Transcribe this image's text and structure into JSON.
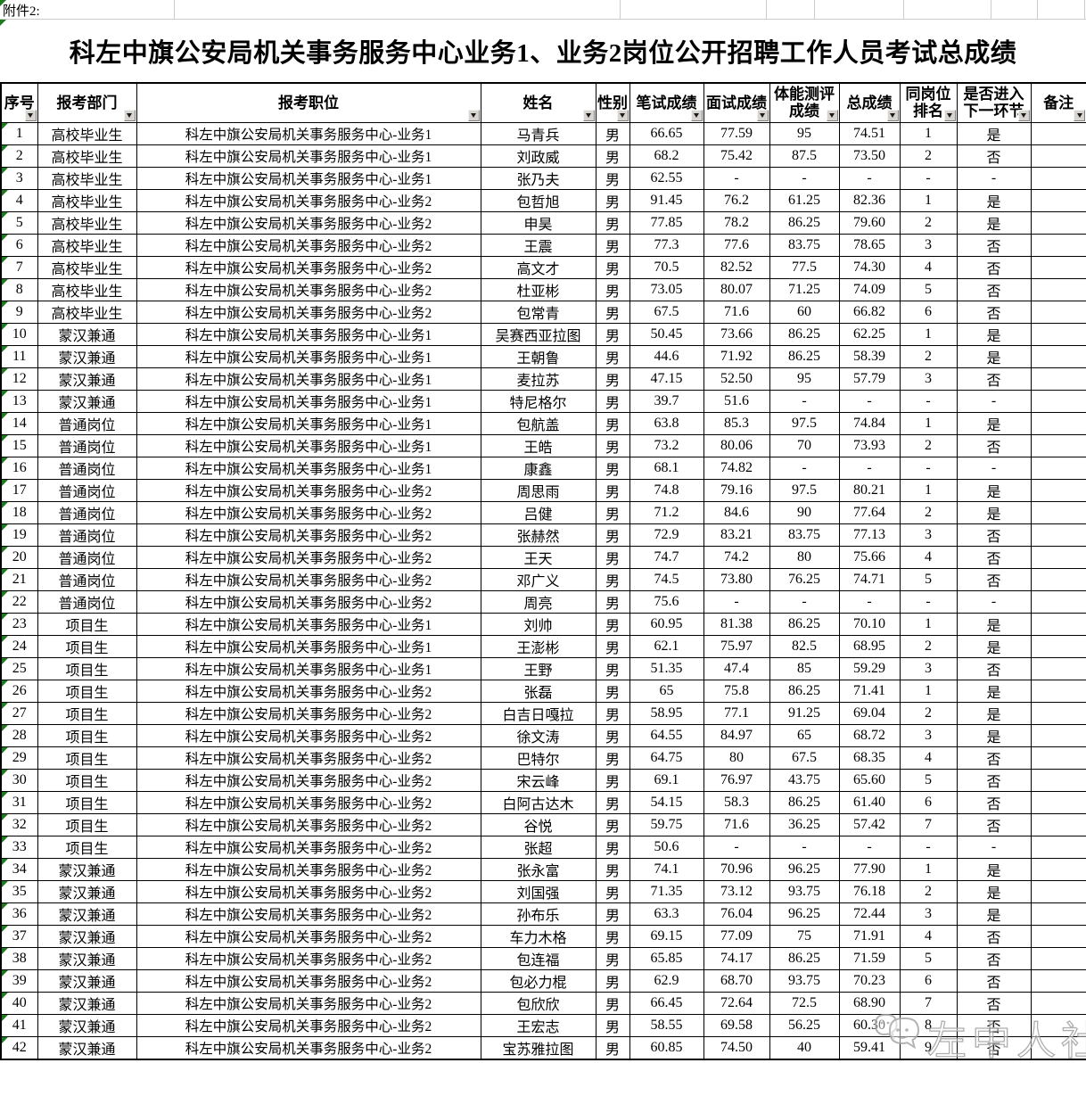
{
  "attachment_label": "附件2:",
  "title": "科左中旗公安局机关事务服务中心业务1、业务2岗位公开招聘工作人员考试总成绩",
  "watermark_text": "左中人社",
  "colors": {
    "grid_black": "#000000",
    "gridline_gray": "#cccccc",
    "flag_green": "#1e7a1e",
    "filter_btn_face": "#d8d5d0",
    "watermark_gray": "#a8a8a8"
  },
  "table": {
    "columns": [
      {
        "key": "xh",
        "label": "序号"
      },
      {
        "key": "bkbm",
        "label": "报考部门"
      },
      {
        "key": "bkzw",
        "label": "报考职位"
      },
      {
        "key": "xm",
        "label": "姓名"
      },
      {
        "key": "xb",
        "label": "性别"
      },
      {
        "key": "bscj",
        "label": "笔试成绩"
      },
      {
        "key": "mscj",
        "label": "面试成绩"
      },
      {
        "key": "tncp",
        "label": "体能测评\n成绩"
      },
      {
        "key": "zcj",
        "label": "总成绩"
      },
      {
        "key": "tgpm",
        "label": "同岗位\n排名"
      },
      {
        "key": "sfjr",
        "label": "是否进入\n下一环节"
      },
      {
        "key": "bz",
        "label": "备注"
      }
    ],
    "rows": [
      [
        "1",
        "高校毕业生",
        "科左中旗公安局机关事务服务中心-业务1",
        "马青兵",
        "男",
        "66.65",
        "77.59",
        "95",
        "74.51",
        "1",
        "是",
        ""
      ],
      [
        "2",
        "高校毕业生",
        "科左中旗公安局机关事务服务中心-业务1",
        "刘政威",
        "男",
        "68.2",
        "75.42",
        "87.5",
        "73.50",
        "2",
        "否",
        ""
      ],
      [
        "3",
        "高校毕业生",
        "科左中旗公安局机关事务服务中心-业务1",
        "张乃夫",
        "男",
        "62.55",
        "-",
        "-",
        "-",
        "-",
        "-",
        ""
      ],
      [
        "4",
        "高校毕业生",
        "科左中旗公安局机关事务服务中心-业务2",
        "包哲旭",
        "男",
        "91.45",
        "76.2",
        "61.25",
        "82.36",
        "1",
        "是",
        ""
      ],
      [
        "5",
        "高校毕业生",
        "科左中旗公安局机关事务服务中心-业务2",
        "申昊",
        "男",
        "77.85",
        "78.2",
        "86.25",
        "79.60",
        "2",
        "是",
        ""
      ],
      [
        "6",
        "高校毕业生",
        "科左中旗公安局机关事务服务中心-业务2",
        "王震",
        "男",
        "77.3",
        "77.6",
        "83.75",
        "78.65",
        "3",
        "否",
        ""
      ],
      [
        "7",
        "高校毕业生",
        "科左中旗公安局机关事务服务中心-业务2",
        "高文才",
        "男",
        "70.5",
        "82.52",
        "77.5",
        "74.30",
        "4",
        "否",
        ""
      ],
      [
        "8",
        "高校毕业生",
        "科左中旗公安局机关事务服务中心-业务2",
        "杜亚彬",
        "男",
        "73.05",
        "80.07",
        "71.25",
        "74.09",
        "5",
        "否",
        ""
      ],
      [
        "9",
        "高校毕业生",
        "科左中旗公安局机关事务服务中心-业务2",
        "包常青",
        "男",
        "67.5",
        "71.6",
        "60",
        "66.82",
        "6",
        "否",
        ""
      ],
      [
        "10",
        "蒙汉兼通",
        "科左中旗公安局机关事务服务中心-业务1",
        "吴赛西亚拉图",
        "男",
        "50.45",
        "73.66",
        "86.25",
        "62.25",
        "1",
        "是",
        ""
      ],
      [
        "11",
        "蒙汉兼通",
        "科左中旗公安局机关事务服务中心-业务1",
        "王朝鲁",
        "男",
        "44.6",
        "71.92",
        "86.25",
        "58.39",
        "2",
        "是",
        ""
      ],
      [
        "12",
        "蒙汉兼通",
        "科左中旗公安局机关事务服务中心-业务1",
        "麦拉苏",
        "男",
        "47.15",
        "52.50",
        "95",
        "57.79",
        "3",
        "否",
        ""
      ],
      [
        "13",
        "蒙汉兼通",
        "科左中旗公安局机关事务服务中心-业务1",
        "特尼格尔",
        "男",
        "39.7",
        "51.6",
        "-",
        "-",
        "-",
        "-",
        ""
      ],
      [
        "14",
        "普通岗位",
        "科左中旗公安局机关事务服务中心-业务1",
        "包航盖",
        "男",
        "63.8",
        "85.3",
        "97.5",
        "74.84",
        "1",
        "是",
        ""
      ],
      [
        "15",
        "普通岗位",
        "科左中旗公安局机关事务服务中心-业务1",
        "王皓",
        "男",
        "73.2",
        "80.06",
        "70",
        "73.93",
        "2",
        "否",
        ""
      ],
      [
        "16",
        "普通岗位",
        "科左中旗公安局机关事务服务中心-业务1",
        "康鑫",
        "男",
        "68.1",
        "74.82",
        "-",
        "-",
        "-",
        "-",
        ""
      ],
      [
        "17",
        "普通岗位",
        "科左中旗公安局机关事务服务中心-业务2",
        "周思雨",
        "男",
        "74.8",
        "79.16",
        "97.5",
        "80.21",
        "1",
        "是",
        ""
      ],
      [
        "18",
        "普通岗位",
        "科左中旗公安局机关事务服务中心-业务2",
        "吕健",
        "男",
        "71.2",
        "84.6",
        "90",
        "77.64",
        "2",
        "是",
        ""
      ],
      [
        "19",
        "普通岗位",
        "科左中旗公安局机关事务服务中心-业务2",
        "张赫然",
        "男",
        "72.9",
        "83.21",
        "83.75",
        "77.13",
        "3",
        "否",
        ""
      ],
      [
        "20",
        "普通岗位",
        "科左中旗公安局机关事务服务中心-业务2",
        "王天",
        "男",
        "74.7",
        "74.2",
        "80",
        "75.66",
        "4",
        "否",
        ""
      ],
      [
        "21",
        "普通岗位",
        "科左中旗公安局机关事务服务中心-业务2",
        "邓广义",
        "男",
        "74.5",
        "73.80",
        "76.25",
        "74.71",
        "5",
        "否",
        ""
      ],
      [
        "22",
        "普通岗位",
        "科左中旗公安局机关事务服务中心-业务2",
        "周亮",
        "男",
        "75.6",
        "-",
        "-",
        "-",
        "-",
        "-",
        ""
      ],
      [
        "23",
        "项目生",
        "科左中旗公安局机关事务服务中心-业务1",
        "刘帅",
        "男",
        "60.95",
        "81.38",
        "86.25",
        "70.10",
        "1",
        "是",
        ""
      ],
      [
        "24",
        "项目生",
        "科左中旗公安局机关事务服务中心-业务1",
        "王澎彬",
        "男",
        "62.1",
        "75.97",
        "82.5",
        "68.95",
        "2",
        "是",
        ""
      ],
      [
        "25",
        "项目生",
        "科左中旗公安局机关事务服务中心-业务1",
        "王野",
        "男",
        "51.35",
        "47.4",
        "85",
        "59.29",
        "3",
        "否",
        ""
      ],
      [
        "26",
        "项目生",
        "科左中旗公安局机关事务服务中心-业务2",
        "张磊",
        "男",
        "65",
        "75.8",
        "86.25",
        "71.41",
        "1",
        "是",
        ""
      ],
      [
        "27",
        "项目生",
        "科左中旗公安局机关事务服务中心-业务2",
        "白吉日嘎拉",
        "男",
        "58.95",
        "77.1",
        "91.25",
        "69.04",
        "2",
        "是",
        ""
      ],
      [
        "28",
        "项目生",
        "科左中旗公安局机关事务服务中心-业务2",
        "徐文涛",
        "男",
        "64.55",
        "84.97",
        "65",
        "68.72",
        "3",
        "是",
        ""
      ],
      [
        "29",
        "项目生",
        "科左中旗公安局机关事务服务中心-业务2",
        "巴特尔",
        "男",
        "64.75",
        "80",
        "67.5",
        "68.35",
        "4",
        "否",
        ""
      ],
      [
        "30",
        "项目生",
        "科左中旗公安局机关事务服务中心-业务2",
        "宋云峰",
        "男",
        "69.1",
        "76.97",
        "43.75",
        "65.60",
        "5",
        "否",
        ""
      ],
      [
        "31",
        "项目生",
        "科左中旗公安局机关事务服务中心-业务2",
        "白阿古达木",
        "男",
        "54.15",
        "58.3",
        "86.25",
        "61.40",
        "6",
        "否",
        ""
      ],
      [
        "32",
        "项目生",
        "科左中旗公安局机关事务服务中心-业务2",
        "谷悦",
        "男",
        "59.75",
        "71.6",
        "36.25",
        "57.42",
        "7",
        "否",
        ""
      ],
      [
        "33",
        "项目生",
        "科左中旗公安局机关事务服务中心-业务2",
        "张超",
        "男",
        "50.6",
        "-",
        "-",
        "-",
        "-",
        "-",
        ""
      ],
      [
        "34",
        "蒙汉兼通",
        "科左中旗公安局机关事务服务中心-业务2",
        "张永富",
        "男",
        "74.1",
        "70.96",
        "96.25",
        "77.90",
        "1",
        "是",
        ""
      ],
      [
        "35",
        "蒙汉兼通",
        "科左中旗公安局机关事务服务中心-业务2",
        "刘国强",
        "男",
        "71.35",
        "73.12",
        "93.75",
        "76.18",
        "2",
        "是",
        ""
      ],
      [
        "36",
        "蒙汉兼通",
        "科左中旗公安局机关事务服务中心-业务2",
        "孙布乐",
        "男",
        "63.3",
        "76.04",
        "96.25",
        "72.44",
        "3",
        "是",
        ""
      ],
      [
        "37",
        "蒙汉兼通",
        "科左中旗公安局机关事务服务中心-业务2",
        "车力木格",
        "男",
        "69.15",
        "77.09",
        "75",
        "71.91",
        "4",
        "否",
        ""
      ],
      [
        "38",
        "蒙汉兼通",
        "科左中旗公安局机关事务服务中心-业务2",
        "包连福",
        "男",
        "65.85",
        "74.17",
        "86.25",
        "71.59",
        "5",
        "否",
        ""
      ],
      [
        "39",
        "蒙汉兼通",
        "科左中旗公安局机关事务服务中心-业务2",
        "包必力棍",
        "男",
        "62.9",
        "68.70",
        "93.75",
        "70.23",
        "6",
        "否",
        ""
      ],
      [
        "40",
        "蒙汉兼通",
        "科左中旗公安局机关事务服务中心-业务2",
        "包欣欣",
        "男",
        "66.45",
        "72.64",
        "72.5",
        "68.90",
        "7",
        "否",
        ""
      ],
      [
        "41",
        "蒙汉兼通",
        "科左中旗公安局机关事务服务中心-业务2",
        "王宏志",
        "男",
        "58.55",
        "69.58",
        "56.25",
        "60.30",
        "8",
        "否",
        ""
      ],
      [
        "42",
        "蒙汉兼通",
        "科左中旗公安局机关事务服务中心-业务2",
        "宝苏雅拉图",
        "男",
        "60.85",
        "74.50",
        "40",
        "59.41",
        "9",
        "否",
        ""
      ]
    ]
  }
}
